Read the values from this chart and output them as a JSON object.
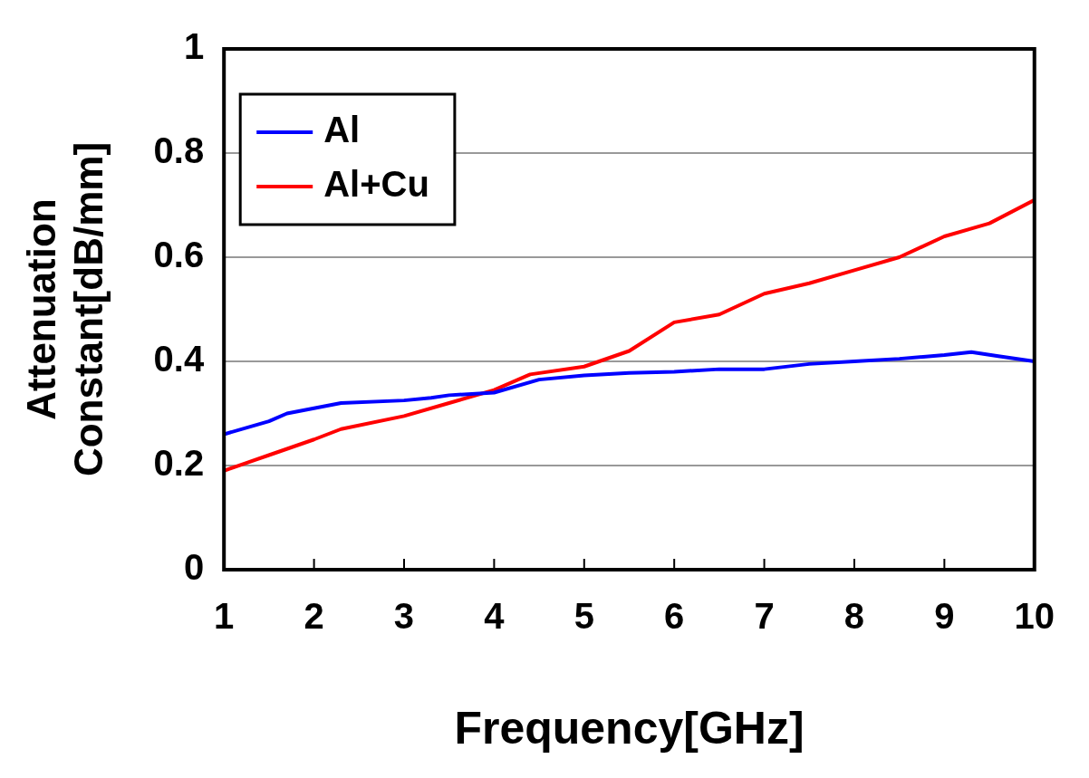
{
  "chart_data": {
    "type": "line",
    "xlabel": "Frequency[GHz]",
    "ylabel": [
      "Attenuation",
      "Constant[dB/mm]"
    ],
    "xlim": [
      1,
      10
    ],
    "xticks": [
      1,
      2,
      3,
      4,
      5,
      6,
      7,
      8,
      9,
      10
    ],
    "ylim": [
      0,
      1
    ],
    "yticks": [
      0,
      0.2,
      0.4,
      0.6,
      0.8,
      1
    ],
    "grid": "y",
    "legend": "top left",
    "marker": "none",
    "line_style": "solid",
    "series": [
      {
        "name": "Al",
        "color": "#0000ff",
        "x": [
          1,
          1.5,
          1.7,
          2,
          2.3,
          3,
          3.3,
          3.5,
          4,
          4.5,
          5,
          5.5,
          6,
          6.5,
          7,
          7.5,
          8,
          8.5,
          9,
          9.3,
          9.6,
          10
        ],
        "values": [
          0.26,
          0.285,
          0.3,
          0.31,
          0.32,
          0.325,
          0.33,
          0.335,
          0.34,
          0.365,
          0.373,
          0.378,
          0.38,
          0.385,
          0.385,
          0.395,
          0.4,
          0.405,
          0.412,
          0.418,
          0.41,
          0.4
        ]
      },
      {
        "name": "Al+Cu",
        "color": "#ff0000",
        "x": [
          1,
          1.5,
          2,
          2.3,
          3,
          3.5,
          4,
          4.4,
          5,
          5.5,
          6,
          6.5,
          7,
          7.5,
          8,
          8.5,
          9,
          9.5,
          10
        ],
        "values": [
          0.19,
          0.22,
          0.25,
          0.27,
          0.295,
          0.32,
          0.345,
          0.375,
          0.39,
          0.42,
          0.475,
          0.49,
          0.53,
          0.55,
          0.575,
          0.6,
          0.64,
          0.665,
          0.71
        ]
      }
    ]
  }
}
